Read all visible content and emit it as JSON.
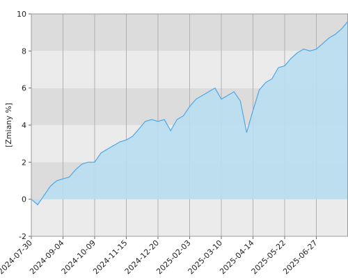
{
  "chart_data": {
    "type": "area",
    "y_label": "[Zmiany %]",
    "categories": [
      "2024-07-30",
      null,
      null,
      null,
      null,
      "2024-09-04",
      null,
      null,
      null,
      null,
      "2024-10-09",
      null,
      null,
      null,
      null,
      "2024-11-15",
      null,
      null,
      null,
      null,
      "2024-12-20",
      null,
      null,
      null,
      null,
      "2025-02-03",
      null,
      null,
      null,
      null,
      "2025-03-10",
      null,
      null,
      null,
      null,
      "2025-04-14",
      null,
      null,
      null,
      null,
      "2025-05-22",
      null,
      null,
      null,
      null,
      "2025-06-27",
      null,
      null,
      null,
      null,
      null
    ],
    "values": [
      0.0,
      -0.3,
      0.2,
      0.7,
      1.0,
      1.1,
      1.2,
      1.6,
      1.9,
      2.0,
      2.0,
      2.5,
      2.7,
      2.9,
      3.1,
      3.2,
      3.4,
      3.8,
      4.2,
      4.3,
      4.2,
      4.3,
      3.7,
      4.3,
      4.5,
      5.0,
      5.4,
      5.6,
      5.8,
      6.0,
      5.4,
      5.6,
      5.8,
      5.3,
      3.6,
      4.8,
      5.9,
      6.3,
      6.5,
      7.1,
      7.2,
      7.6,
      7.9,
      8.1,
      8.0,
      8.1,
      8.4,
      8.7,
      8.9,
      9.2,
      9.6
    ],
    "color": "#4da6e8",
    "fill": "#b9def0",
    "ylim": [
      -2,
      10
    ],
    "yticks": [
      -2,
      0,
      2,
      4,
      6,
      8,
      10
    ],
    "grid": true
  }
}
